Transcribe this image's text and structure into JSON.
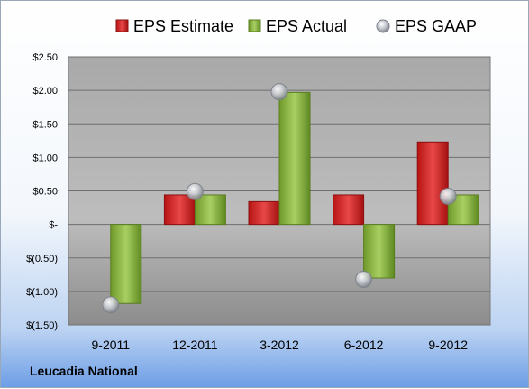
{
  "chart_data": {
    "type": "bar",
    "categories": [
      "9-2011",
      "12-2011",
      "3-2012",
      "6-2012",
      "9-2012"
    ],
    "series": [
      {
        "name": "EPS Estimate",
        "type": "bar",
        "values": [
          null,
          0.44,
          0.34,
          0.44,
          1.23
        ],
        "color": "#d42a2a"
      },
      {
        "name": "EPS Actual",
        "type": "bar",
        "values": [
          -1.18,
          0.44,
          1.97,
          -0.8,
          0.44
        ],
        "color": "#8cb543"
      },
      {
        "name": "EPS GAAP",
        "type": "scatter",
        "values": [
          -1.2,
          0.49,
          1.98,
          -0.82,
          0.42
        ],
        "color": "#b8bcc4"
      }
    ],
    "ylim": [
      -1.5,
      2.5
    ],
    "yticks": [
      2.5,
      2.0,
      1.5,
      1.0,
      0.5,
      0,
      -0.5,
      -1.0,
      -1.5
    ],
    "ytick_labels": [
      "$2.50",
      "$2.00",
      "$1.50",
      "$1.00",
      "$0.50",
      "$-",
      "$(0.50)",
      "$(1.00)",
      "$(1.50)"
    ],
    "grid": true,
    "legend_position": "top"
  },
  "footer": {
    "company_name": "Leucadia National"
  }
}
